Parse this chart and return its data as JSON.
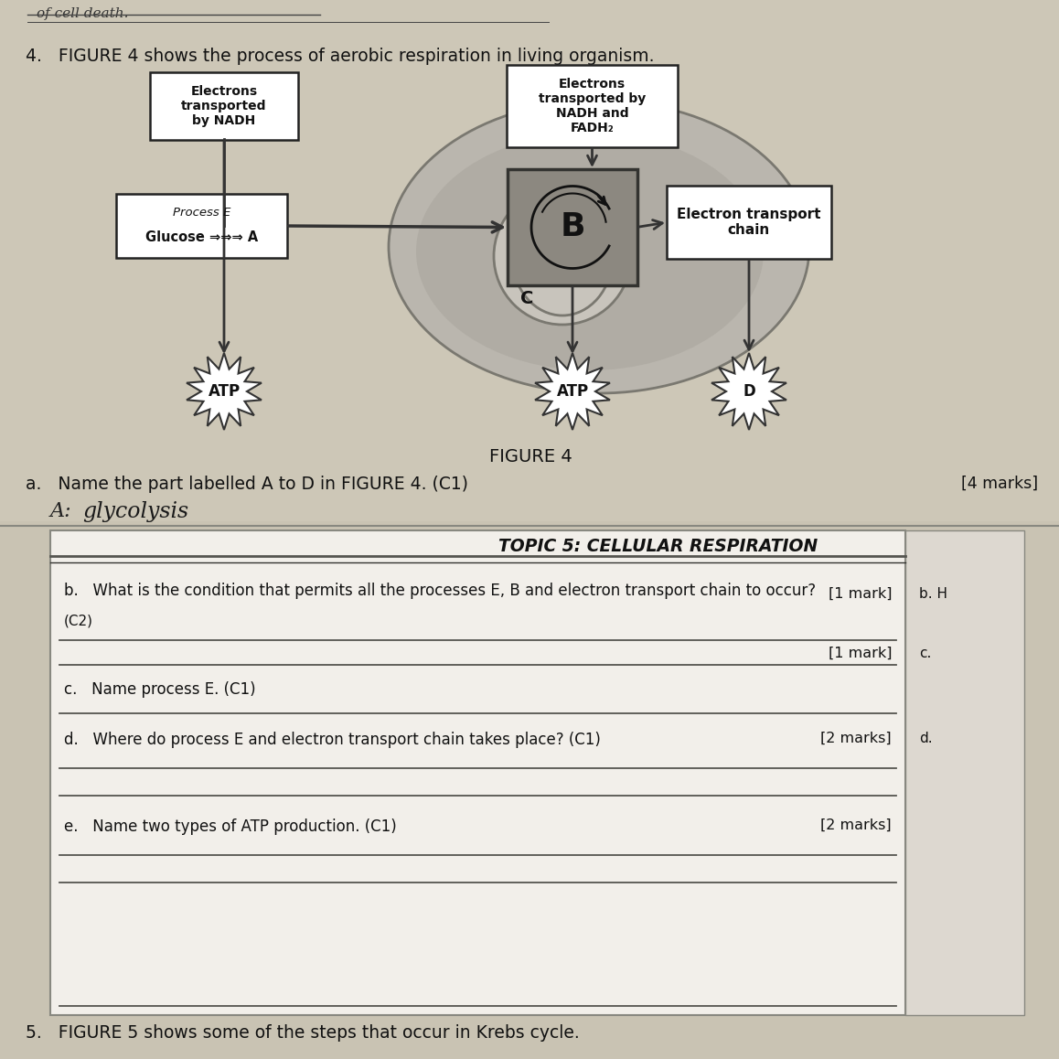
{
  "bg_color": "#c9c3b3",
  "fig_intro": "4.   FIGURE 4 shows the process of aerobic respiration in living organism.",
  "fig_caption": "FIGURE 4",
  "question_a": "a.   Name the part labelled A to D in FIGURE 4. (C1)",
  "marks_a": "[4 marks]",
  "answer_a_label": "A:",
  "answer_a_handwritten": "glycolysis",
  "topic_header": "TOPIC 5: CELLULAR RESPIRATION",
  "question_b": "b.   What is the condition that permits all the processes E, B and electron transport chain to occur?",
  "marks_b1": "[1 mark]",
  "label_b_right": "b. H",
  "c2_label": "(C2)",
  "marks_b2": "[1 mark]",
  "label_c_right": "c.",
  "question_c": "c.   Name process E. (C1)",
  "question_d": "d.   Where do process E and electron transport chain takes place? (C1)",
  "marks_d": "[2 marks]",
  "label_d_right": "d.",
  "question_e": "e.   Name two types of ATP production. (C1)",
  "marks_e": "[2 marks]",
  "footer": "5.   FIGURE 5 shows some of the steps that occur in Krebs cycle.",
  "box_electrons_nadh": "Electrons\ntransported\nby NADH",
  "box_electrons_nadh_fadh2": "Electrons\ntransported by\nNADH and\nFADH₂",
  "box_B": "B",
  "box_electron_chain": "Electron transport\nchain",
  "label_C": "C",
  "label_ATP1": "ATP",
  "label_ATP2": "ATP",
  "label_D": "D",
  "handwritten_top": "of cell death."
}
